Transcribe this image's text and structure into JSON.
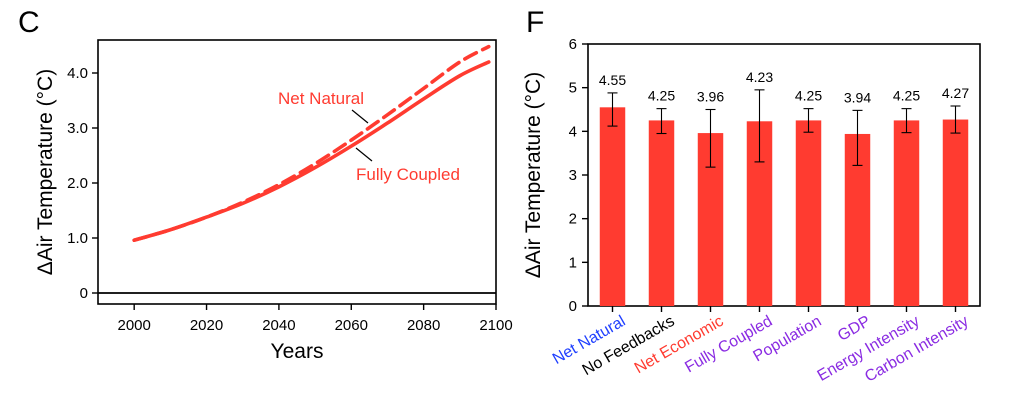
{
  "chart_data": [
    {
      "panel": "C",
      "type": "line",
      "xlabel": "Years",
      "ylabel": "ΔAir Temperature (°C)",
      "xlim": [
        1990,
        2100
      ],
      "ylim": [
        -0.2,
        4.6
      ],
      "xticks": [
        "2000",
        "2020",
        "2040",
        "2060",
        "2080",
        "2100"
      ],
      "yticks": [
        "0",
        "1.0",
        "2.0",
        "3.0",
        "4.0"
      ],
      "color": "#ff3b30",
      "series": [
        {
          "name": "Net Natural",
          "style": "dashed",
          "x": [
            2000,
            2010,
            2020,
            2030,
            2040,
            2050,
            2060,
            2070,
            2080,
            2090,
            2098
          ],
          "y": [
            0.96,
            1.15,
            1.38,
            1.65,
            1.97,
            2.35,
            2.78,
            3.24,
            3.72,
            4.2,
            4.48
          ]
        },
        {
          "name": "Fully Coupled",
          "style": "solid",
          "x": [
            2000,
            2010,
            2020,
            2030,
            2040,
            2050,
            2060,
            2070,
            2080,
            2090,
            2098
          ],
          "y": [
            0.96,
            1.15,
            1.38,
            1.63,
            1.93,
            2.28,
            2.67,
            3.09,
            3.53,
            3.95,
            4.2
          ]
        }
      ]
    },
    {
      "panel": "F",
      "type": "bar",
      "ylabel": "ΔAir Temperature (°C)",
      "ylim": [
        0,
        6
      ],
      "yticks": [
        "0",
        "1",
        "2",
        "3",
        "4",
        "5",
        "6"
      ],
      "bar_color": "#ff3b30",
      "categories": [
        "Net Natural",
        "No Feedbacks",
        "Net Economic",
        "Fully Coupled",
        "Population",
        "GDP",
        "Energy Intensity",
        "Carbon Intensity"
      ],
      "category_colors": [
        "#1f3fff",
        "#000000",
        "#ff3b30",
        "#8a2be2",
        "#8a2be2",
        "#8a2be2",
        "#8a2be2",
        "#8a2be2"
      ],
      "values": [
        4.55,
        4.25,
        3.96,
        4.23,
        4.25,
        3.94,
        4.25,
        4.27
      ],
      "value_labels": [
        "4.55",
        "4.25",
        "3.96",
        "4.23",
        "4.25",
        "3.94",
        "4.25",
        "4.27"
      ],
      "error_low": [
        4.12,
        3.95,
        3.18,
        3.3,
        3.98,
        3.22,
        3.97,
        3.96
      ],
      "error_high": [
        4.88,
        4.52,
        4.5,
        4.95,
        4.52,
        4.48,
        4.52,
        4.58
      ]
    }
  ]
}
